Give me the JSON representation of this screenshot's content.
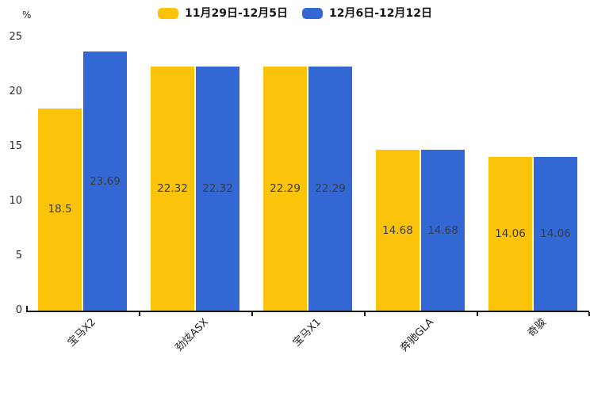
{
  "legend": {
    "items": [
      {
        "label": "11月29日-12月5日",
        "color": "#FCC30B"
      },
      {
        "label": "12月6日-12月12日",
        "color": "#3367D3"
      }
    ]
  },
  "chart_data": {
    "type": "bar",
    "title": "",
    "categories": [
      "宝马X2",
      "劲炫ASX",
      "宝马X1",
      "奔驰GLA",
      "奇骏"
    ],
    "series": [
      {
        "name": "11月29日-12月5日",
        "color": "#FCC30B",
        "values": [
          18.5,
          22.32,
          22.29,
          14.68,
          14.06
        ]
      },
      {
        "name": "12月6日-12月12日",
        "color": "#3367D3",
        "values": [
          23.69,
          22.32,
          22.29,
          14.68,
          14.06
        ]
      }
    ],
    "value_labels": [
      "18.5",
      "23.69",
      "22.32",
      "22.32",
      "22.29",
      "22.29",
      "14.68",
      "14.68",
      "14.06",
      "14.06"
    ],
    "xlabel": "",
    "ylabel": "%",
    "yticks": [
      0,
      5,
      10,
      15,
      20,
      25
    ],
    "ylim": [
      0,
      25
    ],
    "grid": false,
    "legend_position": "top",
    "label_color": "#3d3d3d",
    "axis_color": "#1a1a1a",
    "x_label_rotation": -45
  }
}
